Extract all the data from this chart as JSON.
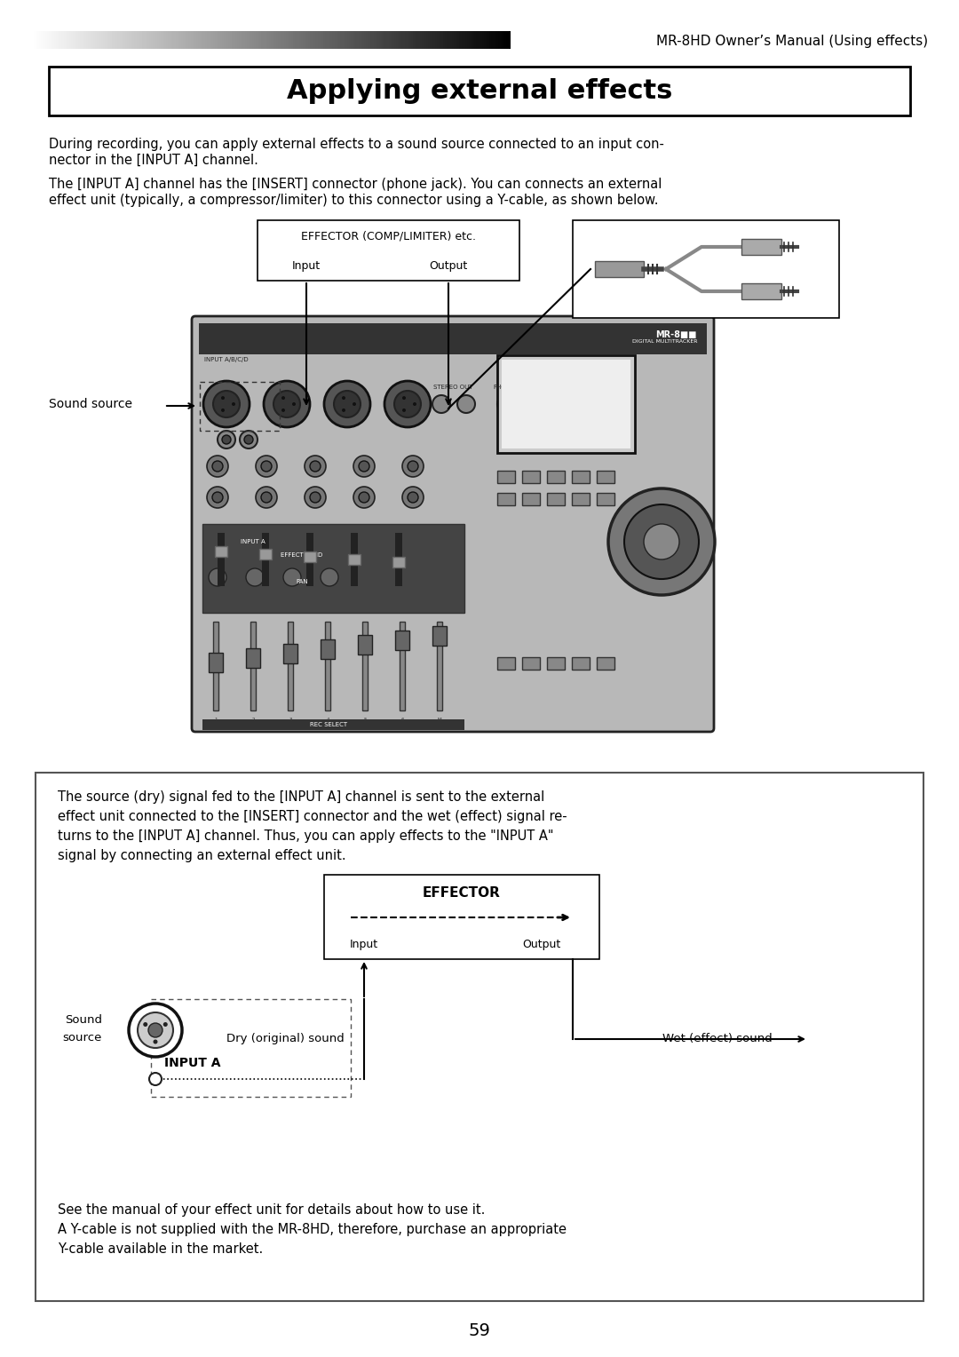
{
  "page_title": "Applying external effects",
  "header_text": "MR-8HD Owner’s Manual (Using effects)",
  "page_number": "59",
  "body_text_1a": "During recording, you can apply external effects to a sound source connected to an input con-",
  "body_text_1b": "nector in the [INPUT A] channel.",
  "body_text_2a": "The [INPUT A] channel has the [INSERT] connector (phone jack). You can connects an external",
  "body_text_2b": "effect unit (typically, a compressor/limiter) to this connector using a Y-cable, as shown below.",
  "effector_label": "EFFECTOR (COMP/LIMITER) etc.",
  "input_label_top": "Input",
  "output_label_top": "Output",
  "sound_source_label": "Sound source",
  "box_text_lines": [
    "The source (dry) signal fed to the [INPUT A] channel is sent to the external",
    "effect unit connected to the [INSERT] connector and the wet (effect) signal re-",
    "turns to the [INPUT A] channel. Thus, you can apply effects to the \"INPUT A\"",
    "signal by connecting an external effect unit."
  ],
  "effector_label2": "EFFECTOR",
  "input_label2": "Input",
  "output_label2": "Output",
  "dry_label": "Dry (original) sound",
  "wet_label": "Wet (effect) sound",
  "sound_source_label2a": "Sound",
  "sound_source_label2b": "source",
  "input_a_label": "INPUT A",
  "footnote1": "See the manual of your effect unit for details about how to use it.",
  "footnote2": "A Y-cable is not supplied with the MR-8HD, therefore, purchase an appropriate",
  "footnote3": "Y-cable available in the market.",
  "bg_color": "#ffffff",
  "text_color": "#000000"
}
